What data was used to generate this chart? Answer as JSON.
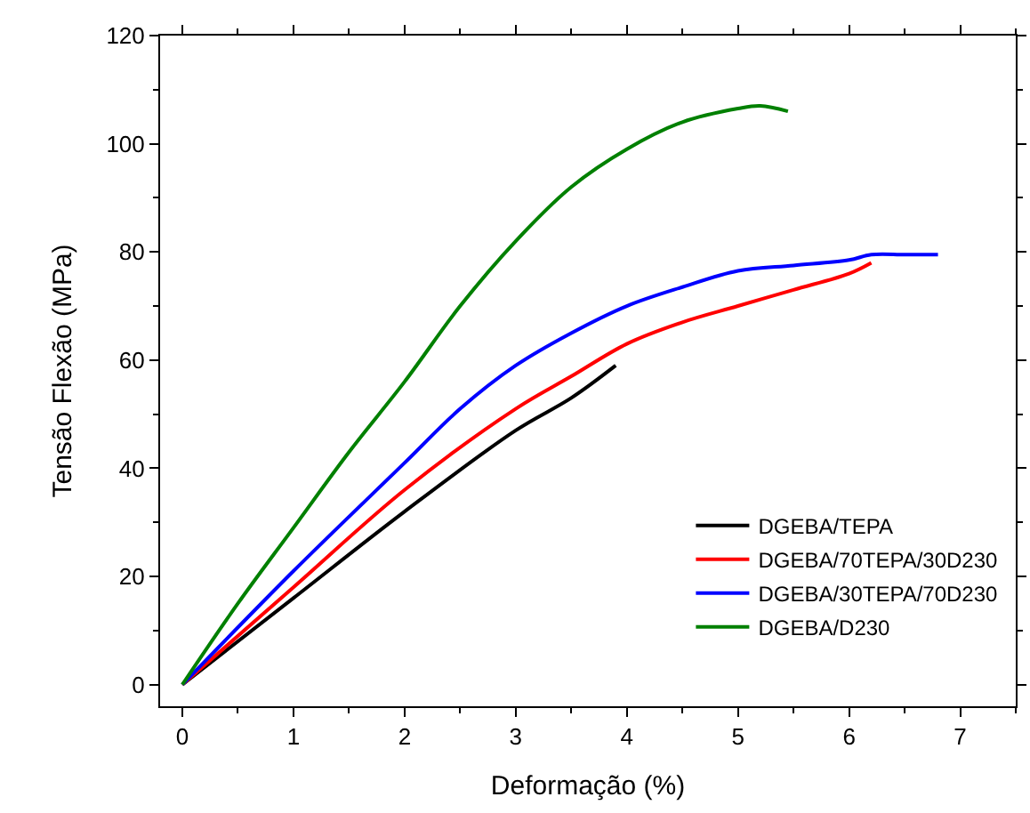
{
  "chart_data": {
    "type": "line",
    "xlabel": "Deformação (%)",
    "ylabel": "Tensão Flexão (MPa)",
    "xlim": [
      -0.2,
      7.5
    ],
    "xticks": [
      0,
      1,
      2,
      3,
      4,
      5,
      6,
      7
    ],
    "ylim": [
      -4,
      120
    ],
    "yticks": [
      0,
      20,
      40,
      60,
      80,
      100,
      120
    ],
    "legend": "bottom right",
    "line_style": "solid",
    "series": [
      {
        "name": "DGEBA/TEPA",
        "color": "#000000",
        "x": [
          0,
          1,
          2,
          3,
          3.5,
          3.9
        ],
        "values": [
          0,
          16,
          32,
          47,
          53,
          59
        ]
      },
      {
        "name": "DGEBA/70TEPA/30D230",
        "color": "#ff0000",
        "x": [
          0,
          1,
          2,
          3,
          3.5,
          4,
          4.5,
          5,
          5.5,
          6,
          6.2
        ],
        "values": [
          0,
          18,
          36,
          51,
          57,
          63,
          67,
          70,
          73,
          76,
          78
        ]
      },
      {
        "name": "DGEBA/30TEPA/70D230",
        "color": "#0000ff",
        "x": [
          0,
          1,
          2,
          2.5,
          3,
          3.5,
          4,
          4.5,
          5,
          5.5,
          6,
          6.2,
          6.5,
          6.8
        ],
        "values": [
          0,
          21,
          41,
          51,
          59,
          65,
          70,
          73.5,
          76.5,
          77.5,
          78.5,
          79.5,
          79.5,
          79.5
        ]
      },
      {
        "name": "DGEBA/D230",
        "color": "#008000",
        "x": [
          0,
          0.5,
          1,
          1.5,
          2,
          2.5,
          3,
          3.5,
          4,
          4.5,
          5,
          5.2,
          5.45
        ],
        "values": [
          0,
          15,
          29,
          43,
          56,
          70,
          82,
          92,
          99,
          104,
          106.5,
          107,
          106
        ]
      }
    ]
  }
}
